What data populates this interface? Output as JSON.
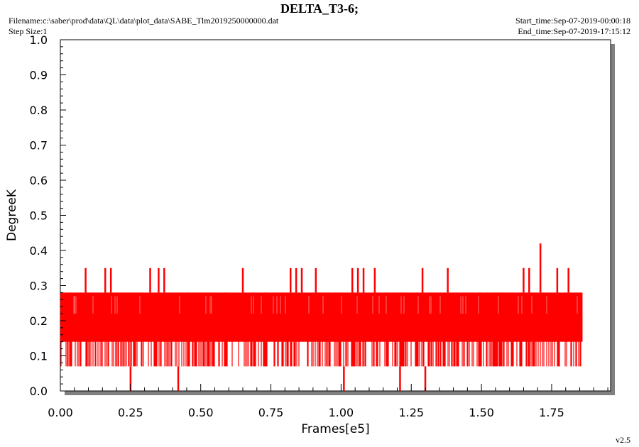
{
  "header": {
    "title": "DELTA_T3-6;",
    "filename": "Filename:c:\\saber\\prod\\data\\QL\\data\\plot_data\\SABE_Tlm2019250000000.dat",
    "step_size": "Step Size:1",
    "start_time": "Start_time:Sep-07-2019-00:00:18",
    "end_time": "End_time:Sep-07-2019-17:15:12"
  },
  "footer": {
    "version": "v2.5"
  },
  "colors": {
    "series": "#ff0000",
    "frame": "#000000",
    "shadow": "#808080",
    "background": "#ffffff"
  },
  "chart_data": {
    "type": "line",
    "title": "DELTA_T3-6;",
    "xlabel": "Frames[e5]",
    "ylabel": "DegreeK",
    "xlim": [
      0,
      1.96
    ],
    "ylim": [
      0,
      1.0
    ],
    "x_ticks": [
      "0.00",
      "0.25",
      "0.50",
      "0.75",
      "1.00",
      "1.25",
      "1.50",
      "1.75"
    ],
    "y_ticks": [
      "0.0",
      "0.1",
      "0.2",
      "0.3",
      "0.4",
      "0.5",
      "0.6",
      "0.7",
      "0.8",
      "0.9",
      "1.0"
    ],
    "grid": false,
    "series": [
      {
        "color": "#ff0000",
        "x_range": [
          0,
          1.86
        ],
        "band_min": 0.07,
        "band_max": 0.28,
        "dense_band": [
          0.14,
          0.28
        ],
        "spikes_high": [
          {
            "x": 0.09,
            "y": 0.35
          },
          {
            "x": 0.16,
            "y": 0.35
          },
          {
            "x": 0.18,
            "y": 0.35
          },
          {
            "x": 0.32,
            "y": 0.35
          },
          {
            "x": 0.35,
            "y": 0.35
          },
          {
            "x": 0.37,
            "y": 0.35
          },
          {
            "x": 0.65,
            "y": 0.35
          },
          {
            "x": 0.82,
            "y": 0.35
          },
          {
            "x": 0.84,
            "y": 0.35
          },
          {
            "x": 0.86,
            "y": 0.35
          },
          {
            "x": 0.91,
            "y": 0.35
          },
          {
            "x": 1.04,
            "y": 0.35
          },
          {
            "x": 1.06,
            "y": 0.35
          },
          {
            "x": 1.08,
            "y": 0.35
          },
          {
            "x": 1.12,
            "y": 0.35
          },
          {
            "x": 1.29,
            "y": 0.35
          },
          {
            "x": 1.38,
            "y": 0.35
          },
          {
            "x": 1.65,
            "y": 0.35
          },
          {
            "x": 1.67,
            "y": 0.35
          },
          {
            "x": 1.71,
            "y": 0.42
          },
          {
            "x": 1.77,
            "y": 0.35
          },
          {
            "x": 1.81,
            "y": 0.35
          }
        ],
        "spikes_low": [
          {
            "x": 0.25,
            "y": 0.0
          },
          {
            "x": 0.42,
            "y": 0.0
          },
          {
            "x": 1.01,
            "y": 0.0
          },
          {
            "x": 1.21,
            "y": 0.0
          },
          {
            "x": 1.3,
            "y": 0.0
          }
        ]
      }
    ]
  }
}
